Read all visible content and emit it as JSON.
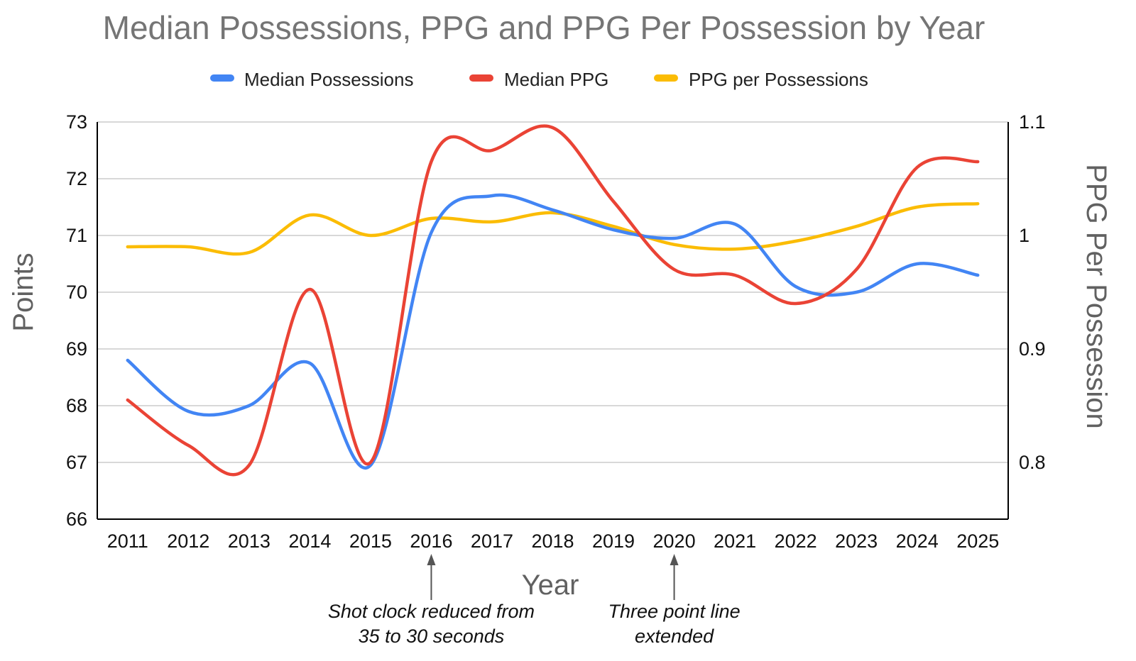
{
  "chart_data": {
    "type": "line",
    "title": "Median Possessions, PPG and PPG Per Possession by Year",
    "xlabel": "Year",
    "ylabel": "Points",
    "y2label": "PPG Per Possession",
    "ylim": [
      66,
      73
    ],
    "y2lim": [
      0.75,
      1.1
    ],
    "yticks": [
      "66",
      "67",
      "68",
      "69",
      "70",
      "71",
      "72",
      "73"
    ],
    "y2ticks": [
      "0.8",
      "0.9",
      "1",
      "1.1"
    ],
    "grid": true,
    "legend": "top-center",
    "categories": [
      "2011",
      "2012",
      "2013",
      "2014",
      "2015",
      "2016",
      "2017",
      "2018",
      "2019",
      "2020",
      "2021",
      "2022",
      "2023",
      "2024",
      "2025"
    ],
    "series": [
      {
        "name": "Median Possessions",
        "color": "#4285F4",
        "axis": "left",
        "values": [
          68.8,
          67.9,
          68.0,
          68.75,
          66.95,
          71.05,
          71.7,
          71.45,
          71.1,
          70.95,
          71.2,
          70.1,
          70.0,
          70.5,
          70.3
        ]
      },
      {
        "name": "Median PPG",
        "color": "#EA4335",
        "axis": "left",
        "values": [
          68.1,
          67.3,
          66.95,
          70.05,
          67.0,
          72.3,
          72.5,
          72.9,
          71.6,
          70.4,
          70.3,
          69.8,
          70.4,
          72.2,
          72.3
        ]
      },
      {
        "name": "PPG per Possessions",
        "color": "#FBBC04",
        "axis": "right",
        "values": [
          0.99,
          0.99,
          0.985,
          1.018,
          1.0,
          1.015,
          1.012,
          1.02,
          1.008,
          0.992,
          0.988,
          0.995,
          1.008,
          1.025,
          1.028
        ]
      }
    ],
    "annotations": [
      {
        "year": "2016",
        "lines": [
          "Shot clock reduced from",
          "35 to 30 seconds"
        ]
      },
      {
        "year": "2020",
        "lines": [
          "Three point line",
          "extended"
        ]
      }
    ]
  }
}
